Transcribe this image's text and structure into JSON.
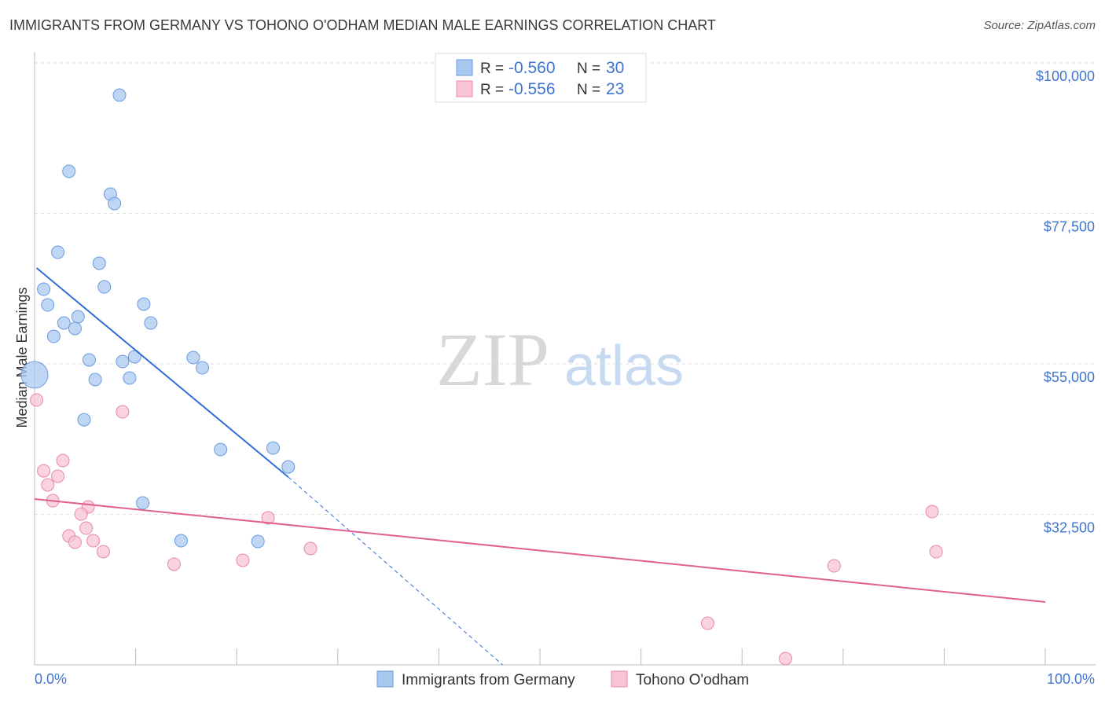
{
  "chart_data": {
    "type": "scatter",
    "title": "IMMIGRANTS FROM GERMANY VS TOHONO O'ODHAM MEDIAN MALE EARNINGS CORRELATION CHART",
    "source": "Source: ZipAtlas.com",
    "xlabel": "",
    "ylabel": "Median Male Earnings",
    "xlim": [
      0,
      100
    ],
    "ylim": [
      10000,
      100000
    ],
    "x_tick_labels": [
      "0.0%",
      "100.0%"
    ],
    "y_ticks": [
      {
        "value": 100000,
        "label": "$100,000"
      },
      {
        "value": 77500,
        "label": "$77,500"
      },
      {
        "value": 55000,
        "label": "$55,000"
      },
      {
        "value": 32500,
        "label": "$32,500"
      }
    ],
    "grid": true,
    "watermark": "ZIPatlas",
    "legend_position": "bottom",
    "stats": [
      {
        "r_label": "R = ",
        "r": "-0.560",
        "n_label": "N = ",
        "n": "30"
      },
      {
        "r_label": "R = ",
        "r": "-0.556",
        "n_label": "N = ",
        "n": "23"
      }
    ],
    "series": [
      {
        "name": "Immigrants from Germany",
        "color": "#a9c8f0",
        "stroke": "#6b9be0",
        "line_color": "#2f6fd6",
        "trend": {
          "x0": 0.2,
          "y0": 69330,
          "x1": 25.1,
          "y1": 38080,
          "dash_to_x": 46.3,
          "dash_to_y": 10000
        },
        "points": [
          [
            8.4,
            95180
          ],
          [
            3.4,
            83785
          ],
          [
            7.5,
            80380
          ],
          [
            7.9,
            78970
          ],
          [
            2.3,
            71680
          ],
          [
            6.4,
            70040
          ],
          [
            6.9,
            66510
          ],
          [
            0.9,
            66160
          ],
          [
            1.3,
            63810
          ],
          [
            10.8,
            63930
          ],
          [
            4.3,
            62050
          ],
          [
            2.9,
            61110
          ],
          [
            11.5,
            61110
          ],
          [
            4.0,
            60290
          ],
          [
            1.9,
            59110
          ],
          [
            5.4,
            55590
          ],
          [
            8.7,
            55350
          ],
          [
            9.9,
            56060
          ],
          [
            15.7,
            55940
          ],
          [
            16.6,
            54410
          ],
          [
            0.0,
            53350,
            "large"
          ],
          [
            6.0,
            52650
          ],
          [
            9.4,
            52880
          ],
          [
            4.9,
            46650
          ],
          [
            18.4,
            42190
          ],
          [
            23.6,
            42420
          ],
          [
            25.1,
            39600
          ],
          [
            10.7,
            34200
          ],
          [
            14.5,
            28560
          ],
          [
            22.1,
            28440
          ]
        ]
      },
      {
        "name": "Tohono O'odham",
        "color": "#f8c4d4",
        "stroke": "#e889a8",
        "line_color": "#e0608e",
        "trend": {
          "x0": 0,
          "y0": 34790,
          "x1": 100,
          "y1": 19400
        },
        "points": [
          [
            0.2,
            49590
          ],
          [
            8.7,
            47830
          ],
          [
            2.8,
            40550
          ],
          [
            0.9,
            39010
          ],
          [
            2.3,
            38200
          ],
          [
            1.3,
            36900
          ],
          [
            1.8,
            34550
          ],
          [
            5.3,
            33610
          ],
          [
            4.6,
            32550
          ],
          [
            23.1,
            31970
          ],
          [
            5.1,
            30440
          ],
          [
            3.4,
            29270
          ],
          [
            4.0,
            28330
          ],
          [
            5.8,
            28560
          ],
          [
            6.8,
            26920
          ],
          [
            13.8,
            25040
          ],
          [
            20.6,
            25630
          ],
          [
            27.3,
            27390
          ],
          [
            88.8,
            32910
          ],
          [
            79.1,
            24800
          ],
          [
            89.2,
            26920
          ],
          [
            66.6,
            16220
          ],
          [
            74.3,
            10940
          ]
        ]
      }
    ]
  }
}
